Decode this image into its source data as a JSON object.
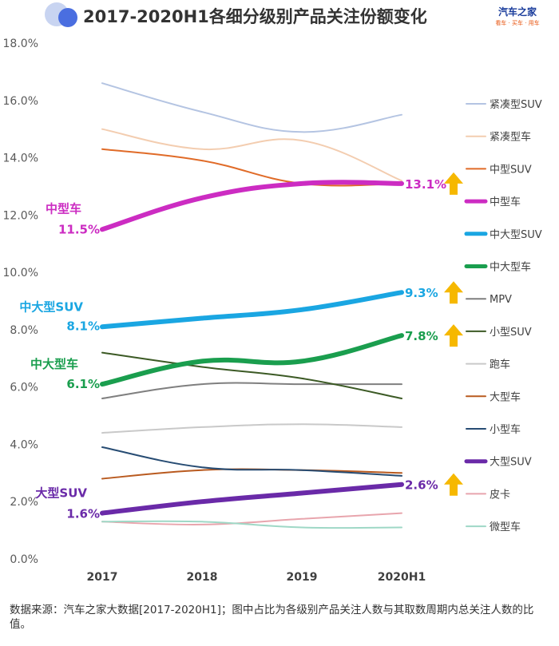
{
  "title": "2017-2020H1各细分级别产品关注份额变化",
  "logo": {
    "main": "汽车之家",
    "sub": "看车 · 买车 · 用车"
  },
  "footnote": "数据来源：汽车之家大数据[2017-2020H1]；图中占比为各级别产品关注人数与其取数周期内总关注人数的比值。",
  "colors": {
    "up_arrow": "#f6b800",
    "background": "#ffffff"
  },
  "chart_data": {
    "type": "line",
    "title": "2017-2020H1各细分级别产品关注份额变化",
    "xlabel": "",
    "ylabel": "",
    "categories": [
      "2017",
      "2018",
      "2019",
      "2020H1"
    ],
    "ylim": [
      0,
      18
    ],
    "yticks": [
      "0.0%",
      "2.0%",
      "4.0%",
      "6.0%",
      "8.0%",
      "10.0%",
      "12.0%",
      "14.0%",
      "16.0%",
      "18.0%"
    ],
    "legend_position": "right",
    "series": [
      {
        "name": "紧凑型SUV",
        "color": "#b4c4e2",
        "width": 2,
        "values": [
          16.6,
          15.6,
          14.9,
          15.5
        ]
      },
      {
        "name": "紧凑型车",
        "color": "#f3cdb0",
        "width": 2,
        "values": [
          15.0,
          14.3,
          14.6,
          13.2
        ]
      },
      {
        "name": "中型SUV",
        "color": "#e06b28",
        "width": 2,
        "values": [
          14.3,
          13.9,
          13.1,
          13.1
        ]
      },
      {
        "name": "中型车",
        "color": "#cc2cc2",
        "width": 6,
        "values": [
          11.5,
          12.6,
          13.1,
          13.1
        ],
        "highlight": true,
        "start_label": "中型车",
        "start_value": "11.5%",
        "end_value": "13.1%",
        "trend": "up"
      },
      {
        "name": "中大型SUV",
        "color": "#1aa6e2",
        "width": 6,
        "values": [
          8.1,
          8.4,
          8.7,
          9.3
        ],
        "highlight": true,
        "start_label": "中大型SUV",
        "start_value": "8.1%",
        "end_value": "9.3%",
        "trend": "up"
      },
      {
        "name": "中大型车",
        "color": "#1a9e4e",
        "width": 6,
        "values": [
          6.1,
          6.9,
          6.9,
          7.8
        ],
        "highlight": true,
        "start_label": "中大型车",
        "start_value": "6.1%",
        "end_value": "7.8%",
        "trend": "up"
      },
      {
        "name": "MPV",
        "color": "#7f7f7f",
        "width": 2,
        "values": [
          5.6,
          6.1,
          6.1,
          6.1
        ]
      },
      {
        "name": "小型SUV",
        "color": "#3c5a25",
        "width": 2,
        "values": [
          7.2,
          6.7,
          6.3,
          5.6
        ]
      },
      {
        "name": "跑车",
        "color": "#c9c9c9",
        "width": 2,
        "values": [
          4.4,
          4.6,
          4.7,
          4.6
        ]
      },
      {
        "name": "大型车",
        "color": "#b95a1f",
        "width": 2,
        "values": [
          2.8,
          3.1,
          3.1,
          3.0
        ]
      },
      {
        "name": "小型车",
        "color": "#274c73",
        "width": 2,
        "values": [
          3.9,
          3.2,
          3.1,
          2.9
        ]
      },
      {
        "name": "大型SUV",
        "color": "#6a2aa8",
        "width": 6,
        "values": [
          1.6,
          2.0,
          2.3,
          2.6
        ],
        "highlight": true,
        "start_label": "大型SUV",
        "start_value": "1.6%",
        "end_value": "2.6%",
        "trend": "up"
      },
      {
        "name": "皮卡",
        "color": "#e8a5ad",
        "width": 2,
        "values": [
          1.3,
          1.2,
          1.4,
          1.6
        ]
      },
      {
        "name": "微型车",
        "color": "#9fd8c6",
        "width": 2,
        "values": [
          1.3,
          1.3,
          1.1,
          1.1
        ]
      }
    ]
  }
}
